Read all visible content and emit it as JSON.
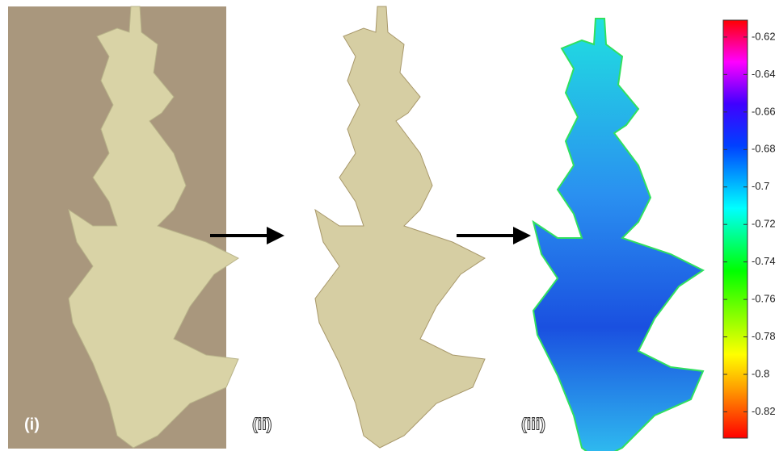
{
  "panels": [
    {
      "label": "(i)"
    },
    {
      "label": "(ii)"
    },
    {
      "label": "(iii)"
    }
  ],
  "colorbar": {
    "lim": [
      -0.834,
      -0.611
    ],
    "ticks": [
      -0.62,
      -0.64,
      -0.66,
      -0.68,
      -0.7,
      -0.72,
      -0.74,
      -0.76,
      -0.78,
      -0.8,
      -0.82
    ]
  }
}
